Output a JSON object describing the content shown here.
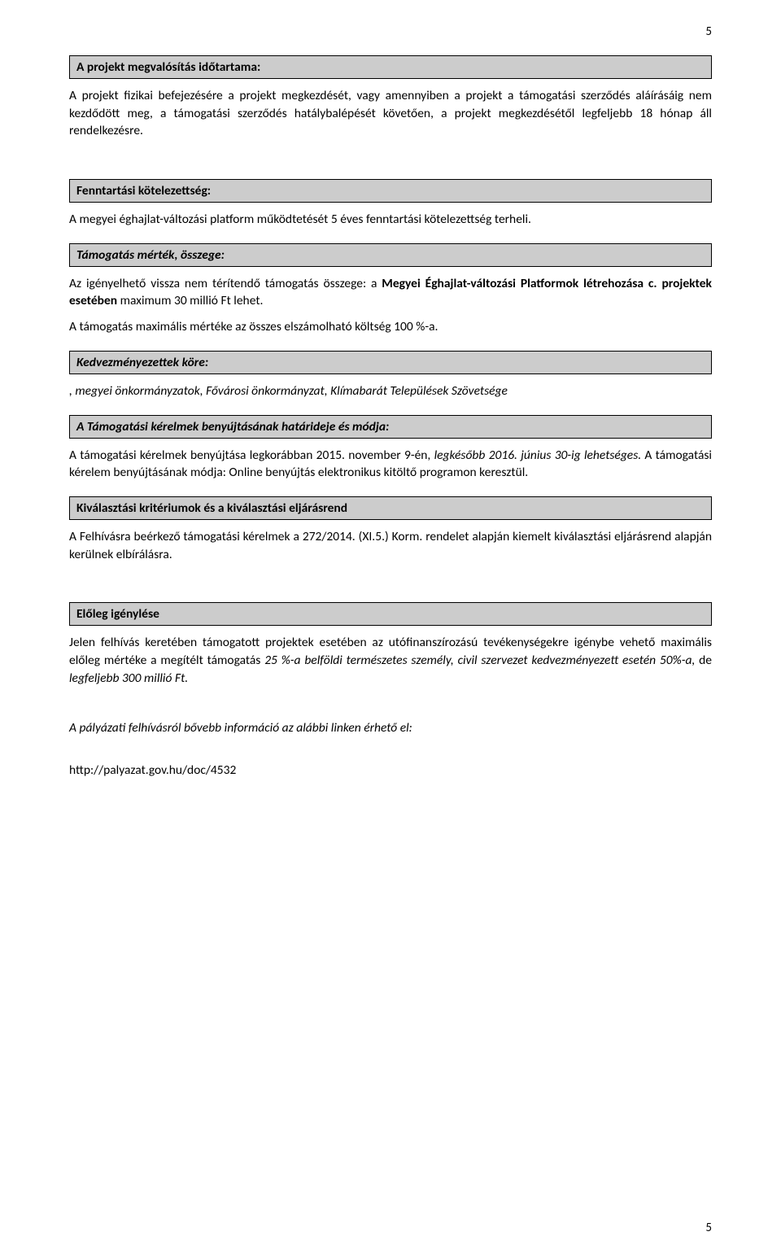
{
  "pageNumTop": "5",
  "pageNumBottom": "5",
  "sections": {
    "idotartam": {
      "header": "A projekt megvalósítás időtartama:",
      "body": "A projekt fizikai befejezésére a projekt megkezdését, vagy amennyiben a projekt a támogatási szerződés aláírásáig nem kezdődött meg, a támogatási szerződés hatálybalépését követően, a projekt megkezdésétől legfeljebb 18 hónap áll rendelkezésre."
    },
    "fenntartasi": {
      "header": "Fenntartási kötelezettség:",
      "body": "A megyei éghajlat-változási platform működtetését 5 éves fenntartási kötelezettség terheli."
    },
    "mertek": {
      "header": "Támogatás mérték, összege:",
      "body_pre": "Az igényelhető vissza nem térítendő támogatás összege: a ",
      "body_bold1": "Megyei Éghajlat-változási Platformok létrehozása c.",
      "body_mid": " ",
      "body_bold2": "projektek esetében",
      "body_post": " maximum 30 millió Ft lehet.",
      "body2": "A támogatás maximális mértéke az összes elszámolható költség 100 %-a."
    },
    "kedvezmenyezettek": {
      "header": "Kedvezményezettek köre:",
      "body": ", megyei önkormányzatok, Fővárosi önkormányzat, Klímabarát Települések Szövetsége"
    },
    "benyujtas": {
      "header": "A Támogatási kérelmek benyújtásának határideje és módja:",
      "body_pre": "A támogatási kérelmek benyújtása legkorábban 2015. november 9-én, ",
      "body_italic": "legkésőbb 2016. június 30-ig lehetséges.",
      "body_post": " A támogatási kérelem benyújtásának módja: Online benyújtás elektronikus kitöltő programon keresztül."
    },
    "kivalasztasi": {
      "header": "Kiválasztási kritériumok és a kiválasztási eljárásrend",
      "body": "A Felhívásra beérkező támogatási kérelmek a 272/2014. (XI.5.) Korm. rendelet alapján kiemelt kiválasztási eljárásrend alapján kerülnek elbírálásra."
    },
    "eloleg": {
      "header": "Előleg igénylése",
      "body_pre": "Jelen felhívás keretében támogatott projektek esetében az utófinanszírozású tevékenységekre igénybe vehető maximális előleg mértéke a megítélt támogatás ",
      "body_italic1": "25 %-a belföldi természetes személy, civil szervezet kedvezményezett esetén 50%-a,",
      "body_mid": " de ",
      "body_italic2": "legfeljebb 300 millió Ft."
    },
    "bovebb": {
      "body": "A pályázati felhívásról bővebb információ az alábbi linken érhető el:"
    },
    "link": {
      "body": "http://palyazat.gov.hu/doc/4532"
    }
  }
}
